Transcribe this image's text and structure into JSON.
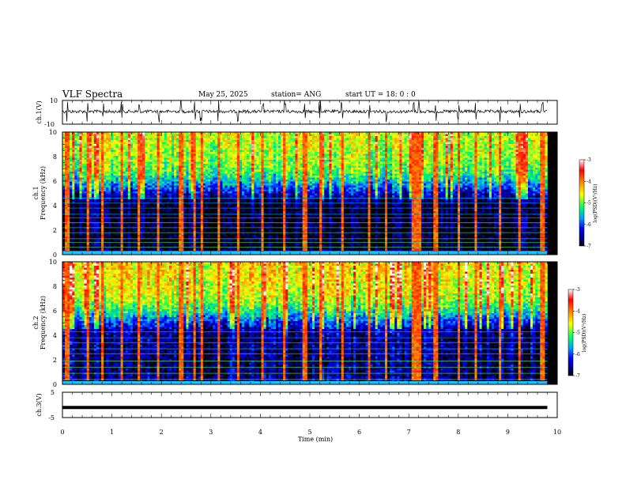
{
  "header": {
    "title": "VLF Spectra",
    "date": "May 25, 2025",
    "station": "station= ANG",
    "start": "start  UT =   18: 0  : 0"
  },
  "chart_data": {
    "type": "heatmap",
    "xlabel": "Time  (min)",
    "x_ticks": [
      "0",
      "1",
      "2",
      "3",
      "4",
      "5",
      "6",
      "7",
      "8",
      "9",
      "10"
    ],
    "xlim": [
      0,
      10
    ],
    "data_end_min": 9.8,
    "panels": {
      "ch1_wave": {
        "ylabel": "ch.1(V)",
        "ylim": [
          -10,
          10
        ],
        "y_ticks": [
          "10",
          "-10"
        ]
      },
      "ch1_spec": {
        "ylabel_top": "ch.1",
        "ylabel": "Frequency  (kHz)",
        "ylim": [
          0,
          10
        ],
        "y_ticks": [
          "10",
          "8",
          "6",
          "4",
          "2",
          "0"
        ],
        "colorbar_label": "log(PSD)(V²/Hz)",
        "colorbar_ticks": [
          "-3",
          "-4",
          "-5",
          "-6",
          "-7"
        ],
        "colorbar_range": [
          -7,
          -3
        ]
      },
      "ch2_spec": {
        "ylabel_top": "ch.2",
        "ylabel": "Frequency  (kHz)",
        "ylim": [
          0,
          10
        ],
        "y_ticks": [
          "10",
          "8",
          "6",
          "4",
          "2",
          "0"
        ],
        "colorbar_label": "log(PSD)(V²/Hz)",
        "colorbar_ticks": [
          "-3",
          "-4",
          "-5",
          "-6",
          "-7"
        ],
        "colorbar_range": [
          -7,
          -3
        ]
      },
      "ch3_wave": {
        "ylabel": "ch.3(V)",
        "ylim": [
          -5,
          5
        ],
        "y_ticks": [
          "5",
          "-5"
        ],
        "level": -1
      }
    },
    "spectrum_profile": {
      "freq_khz": [
        0,
        0.5,
        1,
        2,
        3,
        4,
        4.5,
        5,
        5.5,
        6,
        6.5,
        7,
        8,
        9,
        10
      ],
      "log_psd": [
        -6.8,
        -6.9,
        -6.95,
        -6.95,
        -6.9,
        -6.9,
        -6.7,
        -6.3,
        -5.9,
        -5.5,
        -5.2,
        -4.95,
        -4.8,
        -4.7,
        -4.65
      ]
    },
    "sferic_times_min": [
      0.1,
      0.5,
      0.82,
      1.2,
      1.55,
      1.95,
      2.4,
      2.68,
      2.8,
      3.15,
      3.55,
      4.05,
      4.5,
      4.9,
      5.2,
      5.65,
      6.2,
      6.55,
      7.1,
      7.2,
      7.55,
      8.0,
      8.35,
      8.85,
      9.25,
      9.7
    ],
    "ch1_line_freqs_khz": [
      0.3,
      0.6,
      1.0,
      1.3,
      1.8,
      2.2,
      2.6,
      3.0,
      3.3,
      3.8,
      4.2,
      4.6
    ],
    "ch2_line_freqs_khz": [
      0.4,
      0.9,
      1.4,
      1.9,
      2.5,
      2.9,
      3.4,
      3.8,
      4.3
    ]
  }
}
